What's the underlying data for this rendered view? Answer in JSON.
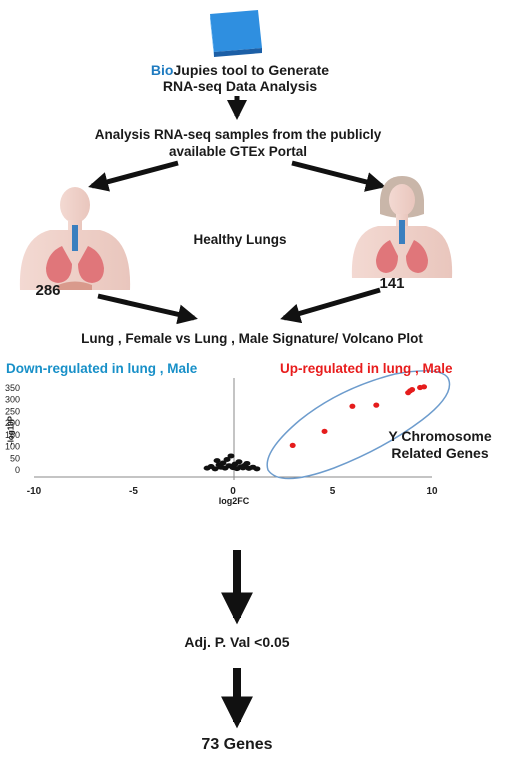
{
  "header": {
    "icon": "book-icon",
    "brand": "Bio",
    "line1_rest": "Jupies tool to Generate",
    "line2": "RNA-seq Data Analysis"
  },
  "step_analysis": {
    "line1": "Analysis RNA-seq samples from the publicly",
    "line2": "available GTEx Portal"
  },
  "lungs": {
    "center_label": "Healthy Lungs",
    "left_count": "286",
    "right_count": "141",
    "left_icon": "male-torso-lungs-icon",
    "right_icon": "female-torso-lungs-icon"
  },
  "signature_title": "Lung , Female vs Lung , Male Signature/ Volcano Plot",
  "volcano": {
    "down_label": "Down-regulated in lung , Male",
    "up_label": "Up-regulated in lung , Male",
    "cluster_label_line1": "Y Chromosome",
    "cluster_label_line2": "Related Genes",
    "x_axis_label": "log2FC",
    "y_axis_label": "-log10P"
  },
  "filter_label": "Adj. P. Val <0.05",
  "result_label": "73 Genes",
  "colors": {
    "brand_blue": "#1f7bc0",
    "down_label": "#1890c8",
    "up_label": "#e81c1c",
    "point_red": "#e51c1c",
    "ellipse": "#6d9ccd",
    "book": "#2f8fe0"
  },
  "chart_data": {
    "type": "scatter",
    "xlabel": "log2FC",
    "ylabel": "-log10P",
    "xlim": [
      -10,
      10
    ],
    "ylim": [
      0,
      360
    ],
    "x_ticks": [
      -10,
      -5,
      0,
      5,
      10
    ],
    "y_ticks": [
      0,
      50,
      100,
      150,
      200,
      250,
      300,
      350
    ],
    "series": [
      {
        "name": "Up-regulated in lung , Male",
        "color": "#e51c1c",
        "points": [
          {
            "x": 3.0,
            "y": 105
          },
          {
            "x": 4.6,
            "y": 165
          },
          {
            "x": 6.0,
            "y": 272
          },
          {
            "x": 7.2,
            "y": 277
          },
          {
            "x": 8.8,
            "y": 330
          },
          {
            "x": 8.9,
            "y": 338
          },
          {
            "x": 9.0,
            "y": 343
          },
          {
            "x": 9.4,
            "y": 352
          },
          {
            "x": 9.6,
            "y": 355
          }
        ]
      },
      {
        "name": "",
        "color": "#111111",
        "points": [
          {
            "x": -1.3,
            "y": 8
          },
          {
            "x": -1.1,
            "y": 15
          },
          {
            "x": -0.9,
            "y": 5
          },
          {
            "x": -0.7,
            "y": 22
          },
          {
            "x": -0.6,
            "y": 12
          },
          {
            "x": -0.5,
            "y": 30
          },
          {
            "x": -0.4,
            "y": 8
          },
          {
            "x": -0.3,
            "y": 45
          },
          {
            "x": -0.2,
            "y": 18
          },
          {
            "x": -0.1,
            "y": 60
          },
          {
            "x": 0.0,
            "y": 10
          },
          {
            "x": 0.1,
            "y": 25
          },
          {
            "x": 0.2,
            "y": 6
          },
          {
            "x": 0.3,
            "y": 35
          },
          {
            "x": 0.4,
            "y": 14
          },
          {
            "x": 0.5,
            "y": 9
          },
          {
            "x": 0.6,
            "y": 20
          },
          {
            "x": 0.8,
            "y": 7
          },
          {
            "x": 1.0,
            "y": 12
          },
          {
            "x": 1.2,
            "y": 5
          },
          {
            "x": -0.8,
            "y": 40
          },
          {
            "x": 0.7,
            "y": 28
          }
        ]
      }
    ]
  }
}
